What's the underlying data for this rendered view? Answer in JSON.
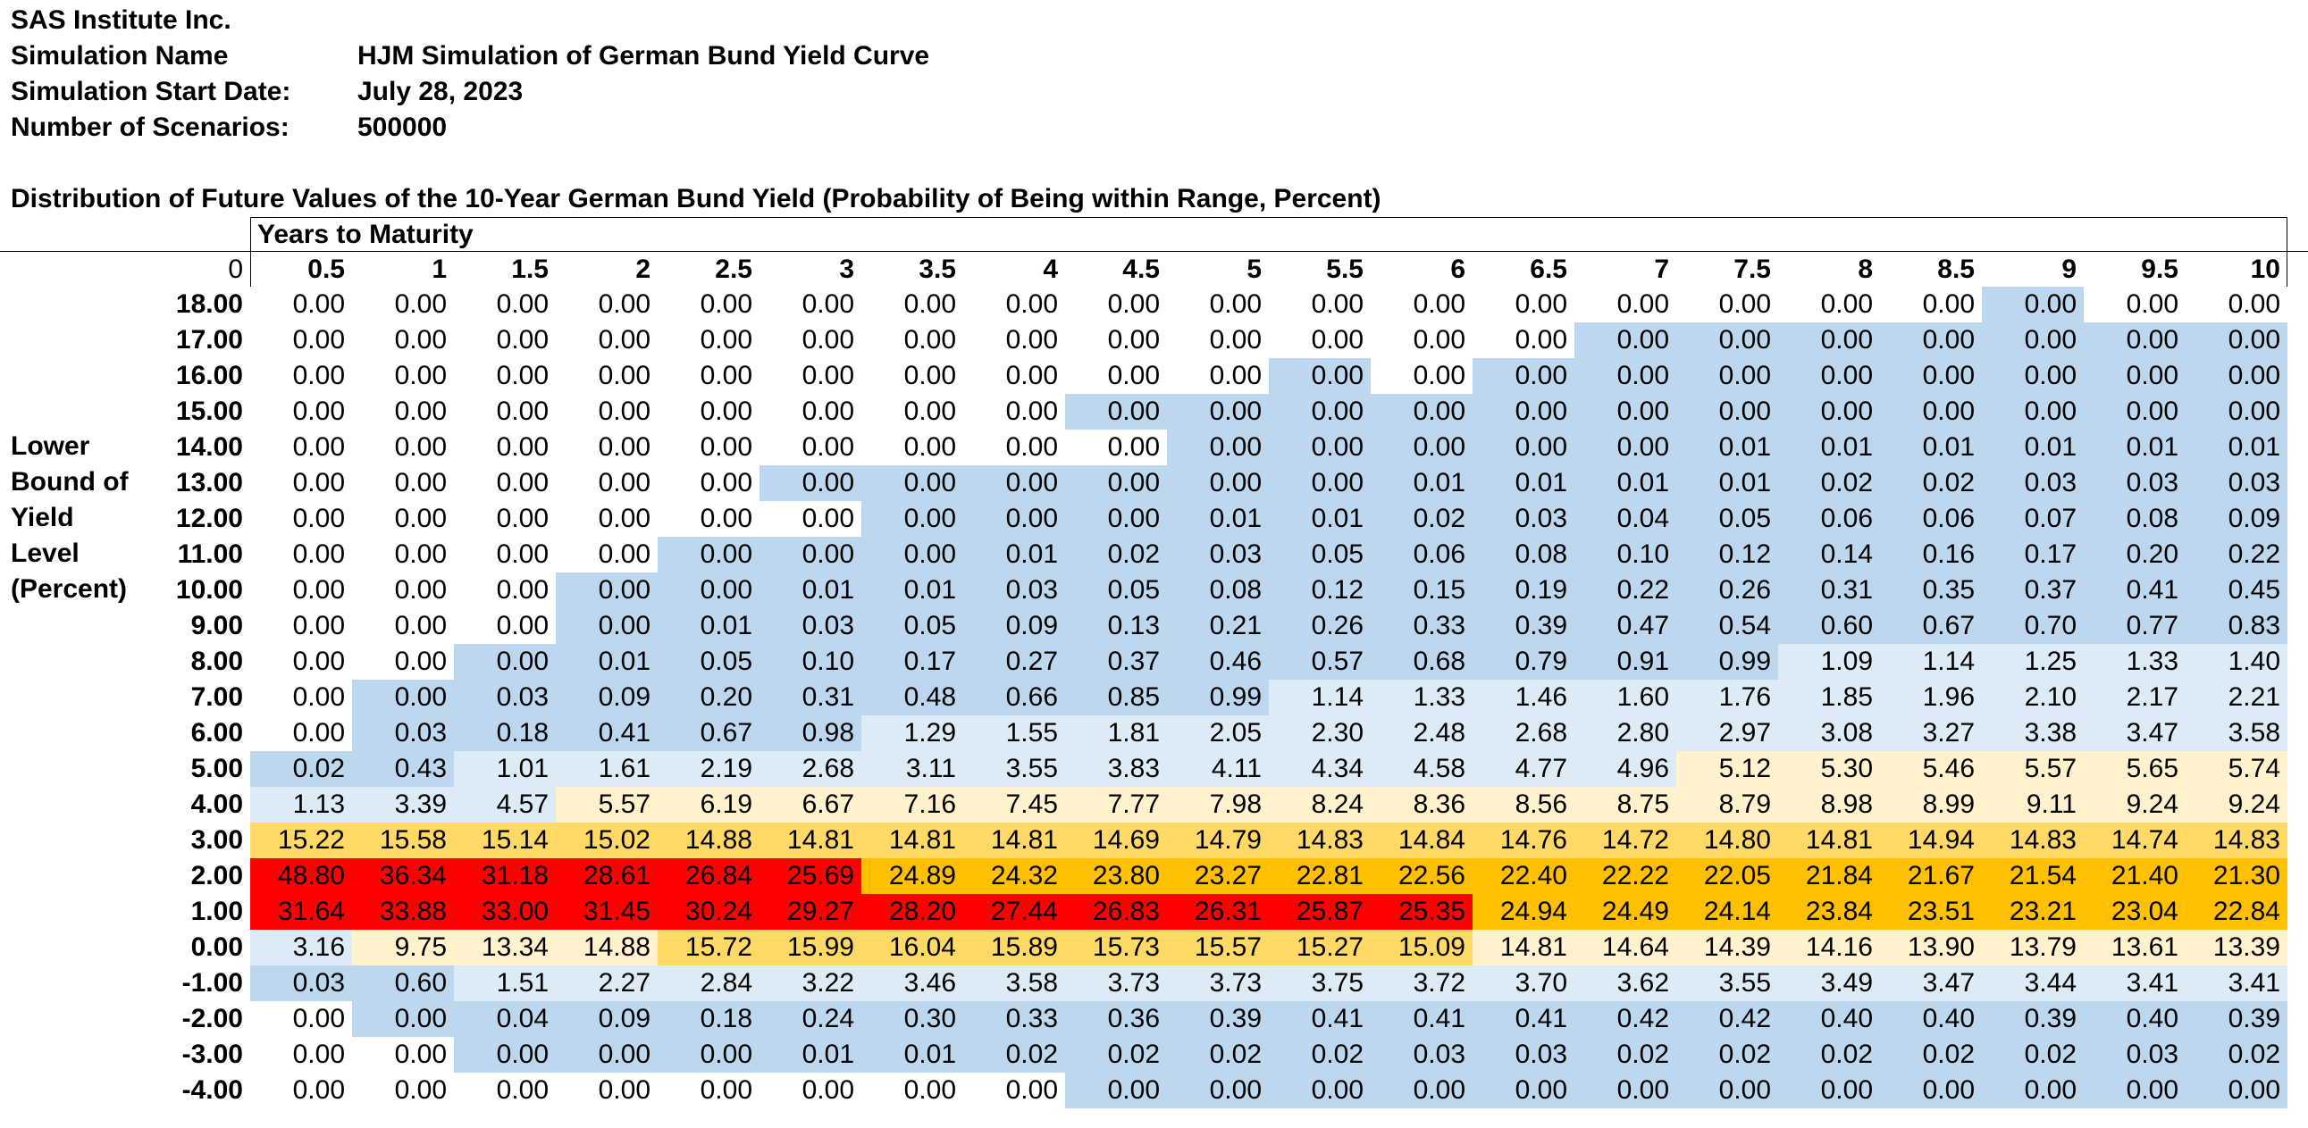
{
  "header": {
    "company": "SAS Institute Inc.",
    "simulation_name_label": "Simulation Name",
    "simulation_name": "HJM Simulation of German Bund Yield Curve",
    "start_date_label": "Simulation Start Date:",
    "start_date": "July 28, 2023",
    "scenarios_label": "Number of Scenarios:",
    "scenarios": "500000"
  },
  "table_title": "Distribution of Future Values of the 10-Year German Bund Yield (Probability of Being within Range, Percent)",
  "column_group_label": "Years to Maturity",
  "corner_label": "0",
  "row_axis_label": [
    "Lower",
    "Bound of",
    "Yield",
    "Level",
    "(Percent)"
  ],
  "columns": [
    "0.5",
    "1",
    "1.5",
    "2",
    "2.5",
    "3",
    "3.5",
    "4",
    "4.5",
    "5",
    "5.5",
    "6",
    "6.5",
    "7",
    "7.5",
    "8",
    "8.5",
    "9",
    "9.5",
    "10"
  ],
  "colors": {
    "white": "#ffffff",
    "blue": "#bdd7ee",
    "light_blue": "#ddebf7",
    "light_yellow": "#fff2cc",
    "yellow": "#ffd966",
    "orange": "#ffc000",
    "red": "#ff0000"
  },
  "rows": [
    {
      "label": "18.00",
      "values": [
        "0.00",
        "0.00",
        "0.00",
        "0.00",
        "0.00",
        "0.00",
        "0.00",
        "0.00",
        "0.00",
        "0.00",
        "0.00",
        "0.00",
        "0.00",
        "0.00",
        "0.00",
        "0.00",
        "0.00",
        "0.00",
        "0.00",
        "0.00"
      ],
      "colors": [
        "white",
        "white",
        "white",
        "white",
        "white",
        "white",
        "white",
        "white",
        "white",
        "white",
        "white",
        "white",
        "white",
        "white",
        "white",
        "white",
        "white",
        "blue",
        "white",
        "white"
      ]
    },
    {
      "label": "17.00",
      "values": [
        "0.00",
        "0.00",
        "0.00",
        "0.00",
        "0.00",
        "0.00",
        "0.00",
        "0.00",
        "0.00",
        "0.00",
        "0.00",
        "0.00",
        "0.00",
        "0.00",
        "0.00",
        "0.00",
        "0.00",
        "0.00",
        "0.00",
        "0.00"
      ],
      "colors": [
        "white",
        "white",
        "white",
        "white",
        "white",
        "white",
        "white",
        "white",
        "white",
        "white",
        "white",
        "white",
        "white",
        "blue",
        "blue",
        "blue",
        "blue",
        "blue",
        "blue",
        "blue"
      ]
    },
    {
      "label": "16.00",
      "values": [
        "0.00",
        "0.00",
        "0.00",
        "0.00",
        "0.00",
        "0.00",
        "0.00",
        "0.00",
        "0.00",
        "0.00",
        "0.00",
        "0.00",
        "0.00",
        "0.00",
        "0.00",
        "0.00",
        "0.00",
        "0.00",
        "0.00",
        "0.00"
      ],
      "colors": [
        "white",
        "white",
        "white",
        "white",
        "white",
        "white",
        "white",
        "white",
        "white",
        "white",
        "blue",
        "white",
        "blue",
        "blue",
        "blue",
        "blue",
        "blue",
        "blue",
        "blue",
        "blue"
      ]
    },
    {
      "label": "15.00",
      "values": [
        "0.00",
        "0.00",
        "0.00",
        "0.00",
        "0.00",
        "0.00",
        "0.00",
        "0.00",
        "0.00",
        "0.00",
        "0.00",
        "0.00",
        "0.00",
        "0.00",
        "0.00",
        "0.00",
        "0.00",
        "0.00",
        "0.00",
        "0.00"
      ],
      "colors": [
        "white",
        "white",
        "white",
        "white",
        "white",
        "white",
        "white",
        "white",
        "blue",
        "blue",
        "blue",
        "blue",
        "blue",
        "blue",
        "blue",
        "blue",
        "blue",
        "blue",
        "blue",
        "blue"
      ]
    },
    {
      "label": "14.00",
      "values": [
        "0.00",
        "0.00",
        "0.00",
        "0.00",
        "0.00",
        "0.00",
        "0.00",
        "0.00",
        "0.00",
        "0.00",
        "0.00",
        "0.00",
        "0.00",
        "0.00",
        "0.01",
        "0.01",
        "0.01",
        "0.01",
        "0.01",
        "0.01"
      ],
      "colors": [
        "white",
        "white",
        "white",
        "white",
        "white",
        "white",
        "white",
        "white",
        "white",
        "blue",
        "blue",
        "blue",
        "blue",
        "blue",
        "blue",
        "blue",
        "blue",
        "blue",
        "blue",
        "blue"
      ]
    },
    {
      "label": "13.00",
      "values": [
        "0.00",
        "0.00",
        "0.00",
        "0.00",
        "0.00",
        "0.00",
        "0.00",
        "0.00",
        "0.00",
        "0.00",
        "0.00",
        "0.01",
        "0.01",
        "0.01",
        "0.01",
        "0.02",
        "0.02",
        "0.03",
        "0.03",
        "0.03"
      ],
      "colors": [
        "white",
        "white",
        "white",
        "white",
        "white",
        "blue",
        "blue",
        "blue",
        "blue",
        "blue",
        "blue",
        "blue",
        "blue",
        "blue",
        "blue",
        "blue",
        "blue",
        "blue",
        "blue",
        "blue"
      ]
    },
    {
      "label": "12.00",
      "values": [
        "0.00",
        "0.00",
        "0.00",
        "0.00",
        "0.00",
        "0.00",
        "0.00",
        "0.00",
        "0.00",
        "0.01",
        "0.01",
        "0.02",
        "0.03",
        "0.04",
        "0.05",
        "0.06",
        "0.06",
        "0.07",
        "0.08",
        "0.09"
      ],
      "colors": [
        "white",
        "white",
        "white",
        "white",
        "white",
        "white",
        "blue",
        "blue",
        "blue",
        "blue",
        "blue",
        "blue",
        "blue",
        "blue",
        "blue",
        "blue",
        "blue",
        "blue",
        "blue",
        "blue"
      ]
    },
    {
      "label": "11.00",
      "values": [
        "0.00",
        "0.00",
        "0.00",
        "0.00",
        "0.00",
        "0.00",
        "0.00",
        "0.01",
        "0.02",
        "0.03",
        "0.05",
        "0.06",
        "0.08",
        "0.10",
        "0.12",
        "0.14",
        "0.16",
        "0.17",
        "0.20",
        "0.22"
      ],
      "colors": [
        "white",
        "white",
        "white",
        "white",
        "blue",
        "blue",
        "blue",
        "blue",
        "blue",
        "blue",
        "blue",
        "blue",
        "blue",
        "blue",
        "blue",
        "blue",
        "blue",
        "blue",
        "blue",
        "blue"
      ]
    },
    {
      "label": "10.00",
      "values": [
        "0.00",
        "0.00",
        "0.00",
        "0.00",
        "0.00",
        "0.01",
        "0.01",
        "0.03",
        "0.05",
        "0.08",
        "0.12",
        "0.15",
        "0.19",
        "0.22",
        "0.26",
        "0.31",
        "0.35",
        "0.37",
        "0.41",
        "0.45"
      ],
      "colors": [
        "white",
        "white",
        "white",
        "blue",
        "blue",
        "blue",
        "blue",
        "blue",
        "blue",
        "blue",
        "blue",
        "blue",
        "blue",
        "blue",
        "blue",
        "blue",
        "blue",
        "blue",
        "blue",
        "blue"
      ]
    },
    {
      "label": "9.00",
      "values": [
        "0.00",
        "0.00",
        "0.00",
        "0.00",
        "0.01",
        "0.03",
        "0.05",
        "0.09",
        "0.13",
        "0.21",
        "0.26",
        "0.33",
        "0.39",
        "0.47",
        "0.54",
        "0.60",
        "0.67",
        "0.70",
        "0.77",
        "0.83"
      ],
      "colors": [
        "white",
        "white",
        "white",
        "blue",
        "blue",
        "blue",
        "blue",
        "blue",
        "blue",
        "blue",
        "blue",
        "blue",
        "blue",
        "blue",
        "blue",
        "blue",
        "blue",
        "blue",
        "blue",
        "blue"
      ]
    },
    {
      "label": "8.00",
      "values": [
        "0.00",
        "0.00",
        "0.00",
        "0.01",
        "0.05",
        "0.10",
        "0.17",
        "0.27",
        "0.37",
        "0.46",
        "0.57",
        "0.68",
        "0.79",
        "0.91",
        "0.99",
        "1.09",
        "1.14",
        "1.25",
        "1.33",
        "1.40"
      ],
      "colors": [
        "white",
        "white",
        "blue",
        "blue",
        "blue",
        "blue",
        "blue",
        "blue",
        "blue",
        "blue",
        "blue",
        "blue",
        "blue",
        "blue",
        "blue",
        "light_blue",
        "light_blue",
        "light_blue",
        "light_blue",
        "light_blue"
      ]
    },
    {
      "label": "7.00",
      "values": [
        "0.00",
        "0.00",
        "0.03",
        "0.09",
        "0.20",
        "0.31",
        "0.48",
        "0.66",
        "0.85",
        "0.99",
        "1.14",
        "1.33",
        "1.46",
        "1.60",
        "1.76",
        "1.85",
        "1.96",
        "2.10",
        "2.17",
        "2.21"
      ],
      "colors": [
        "white",
        "blue",
        "blue",
        "blue",
        "blue",
        "blue",
        "blue",
        "blue",
        "blue",
        "blue",
        "light_blue",
        "light_blue",
        "light_blue",
        "light_blue",
        "light_blue",
        "light_blue",
        "light_blue",
        "light_blue",
        "light_blue",
        "light_blue"
      ]
    },
    {
      "label": "6.00",
      "values": [
        "0.00",
        "0.03",
        "0.18",
        "0.41",
        "0.67",
        "0.98",
        "1.29",
        "1.55",
        "1.81",
        "2.05",
        "2.30",
        "2.48",
        "2.68",
        "2.80",
        "2.97",
        "3.08",
        "3.27",
        "3.38",
        "3.47",
        "3.58"
      ],
      "colors": [
        "white",
        "blue",
        "blue",
        "blue",
        "blue",
        "blue",
        "light_blue",
        "light_blue",
        "light_blue",
        "light_blue",
        "light_blue",
        "light_blue",
        "light_blue",
        "light_blue",
        "light_blue",
        "light_blue",
        "light_blue",
        "light_blue",
        "light_blue",
        "light_blue"
      ]
    },
    {
      "label": "5.00",
      "values": [
        "0.02",
        "0.43",
        "1.01",
        "1.61",
        "2.19",
        "2.68",
        "3.11",
        "3.55",
        "3.83",
        "4.11",
        "4.34",
        "4.58",
        "4.77",
        "4.96",
        "5.12",
        "5.30",
        "5.46",
        "5.57",
        "5.65",
        "5.74"
      ],
      "colors": [
        "blue",
        "blue",
        "light_blue",
        "light_blue",
        "light_blue",
        "light_blue",
        "light_blue",
        "light_blue",
        "light_blue",
        "light_blue",
        "light_blue",
        "light_blue",
        "light_blue",
        "light_blue",
        "light_yellow",
        "light_yellow",
        "light_yellow",
        "light_yellow",
        "light_yellow",
        "light_yellow"
      ]
    },
    {
      "label": "4.00",
      "values": [
        "1.13",
        "3.39",
        "4.57",
        "5.57",
        "6.19",
        "6.67",
        "7.16",
        "7.45",
        "7.77",
        "7.98",
        "8.24",
        "8.36",
        "8.56",
        "8.75",
        "8.79",
        "8.98",
        "8.99",
        "9.11",
        "9.24",
        "9.24"
      ],
      "colors": [
        "light_blue",
        "light_blue",
        "light_blue",
        "light_yellow",
        "light_yellow",
        "light_yellow",
        "light_yellow",
        "light_yellow",
        "light_yellow",
        "light_yellow",
        "light_yellow",
        "light_yellow",
        "light_yellow",
        "light_yellow",
        "light_yellow",
        "light_yellow",
        "light_yellow",
        "light_yellow",
        "light_yellow",
        "light_yellow"
      ]
    },
    {
      "label": "3.00",
      "values": [
        "15.22",
        "15.58",
        "15.14",
        "15.02",
        "14.88",
        "14.81",
        "14.81",
        "14.81",
        "14.69",
        "14.79",
        "14.83",
        "14.84",
        "14.76",
        "14.72",
        "14.80",
        "14.81",
        "14.94",
        "14.83",
        "14.74",
        "14.83"
      ],
      "colors": [
        "yellow",
        "yellow",
        "yellow",
        "yellow",
        "yellow",
        "yellow",
        "yellow",
        "yellow",
        "yellow",
        "yellow",
        "yellow",
        "yellow",
        "yellow",
        "yellow",
        "yellow",
        "yellow",
        "yellow",
        "yellow",
        "yellow",
        "yellow"
      ]
    },
    {
      "label": "2.00",
      "values": [
        "48.80",
        "36.34",
        "31.18",
        "28.61",
        "26.84",
        "25.69",
        "24.89",
        "24.32",
        "23.80",
        "23.27",
        "22.81",
        "22.56",
        "22.40",
        "22.22",
        "22.05",
        "21.84",
        "21.67",
        "21.54",
        "21.40",
        "21.30"
      ],
      "colors": [
        "red",
        "red",
        "red",
        "red",
        "red",
        "red",
        "orange",
        "orange",
        "orange",
        "orange",
        "orange",
        "orange",
        "orange",
        "orange",
        "orange",
        "orange",
        "orange",
        "orange",
        "orange",
        "orange"
      ]
    },
    {
      "label": "1.00",
      "values": [
        "31.64",
        "33.88",
        "33.00",
        "31.45",
        "30.24",
        "29.27",
        "28.20",
        "27.44",
        "26.83",
        "26.31",
        "25.87",
        "25.35",
        "24.94",
        "24.49",
        "24.14",
        "23.84",
        "23.51",
        "23.21",
        "23.04",
        "22.84"
      ],
      "colors": [
        "red",
        "red",
        "red",
        "red",
        "red",
        "red",
        "red",
        "red",
        "red",
        "red",
        "red",
        "red",
        "orange",
        "orange",
        "orange",
        "orange",
        "orange",
        "orange",
        "orange",
        "orange"
      ]
    },
    {
      "label": "0.00",
      "values": [
        "3.16",
        "9.75",
        "13.34",
        "14.88",
        "15.72",
        "15.99",
        "16.04",
        "15.89",
        "15.73",
        "15.57",
        "15.27",
        "15.09",
        "14.81",
        "14.64",
        "14.39",
        "14.16",
        "13.90",
        "13.79",
        "13.61",
        "13.39"
      ],
      "colors": [
        "light_blue",
        "light_yellow",
        "light_yellow",
        "light_yellow",
        "yellow",
        "yellow",
        "yellow",
        "yellow",
        "yellow",
        "yellow",
        "yellow",
        "yellow",
        "light_yellow",
        "light_yellow",
        "light_yellow",
        "light_yellow",
        "light_yellow",
        "light_yellow",
        "light_yellow",
        "light_yellow"
      ]
    },
    {
      "label": "-1.00",
      "values": [
        "0.03",
        "0.60",
        "1.51",
        "2.27",
        "2.84",
        "3.22",
        "3.46",
        "3.58",
        "3.73",
        "3.73",
        "3.75",
        "3.72",
        "3.70",
        "3.62",
        "3.55",
        "3.49",
        "3.47",
        "3.44",
        "3.41",
        "3.41"
      ],
      "colors": [
        "blue",
        "blue",
        "light_blue",
        "light_blue",
        "light_blue",
        "light_blue",
        "light_blue",
        "light_blue",
        "light_blue",
        "light_blue",
        "light_blue",
        "light_blue",
        "light_blue",
        "light_blue",
        "light_blue",
        "light_blue",
        "light_blue",
        "light_blue",
        "light_blue",
        "light_blue"
      ]
    },
    {
      "label": "-2.00",
      "values": [
        "0.00",
        "0.00",
        "0.04",
        "0.09",
        "0.18",
        "0.24",
        "0.30",
        "0.33",
        "0.36",
        "0.39",
        "0.41",
        "0.41",
        "0.41",
        "0.42",
        "0.42",
        "0.40",
        "0.40",
        "0.39",
        "0.40",
        "0.39"
      ],
      "colors": [
        "white",
        "blue",
        "blue",
        "blue",
        "blue",
        "blue",
        "blue",
        "blue",
        "blue",
        "blue",
        "blue",
        "blue",
        "blue",
        "blue",
        "blue",
        "blue",
        "blue",
        "blue",
        "blue",
        "blue"
      ]
    },
    {
      "label": "-3.00",
      "values": [
        "0.00",
        "0.00",
        "0.00",
        "0.00",
        "0.00",
        "0.01",
        "0.01",
        "0.02",
        "0.02",
        "0.02",
        "0.02",
        "0.03",
        "0.03",
        "0.02",
        "0.02",
        "0.02",
        "0.02",
        "0.02",
        "0.03",
        "0.02"
      ],
      "colors": [
        "white",
        "white",
        "blue",
        "blue",
        "blue",
        "blue",
        "blue",
        "blue",
        "blue",
        "blue",
        "blue",
        "blue",
        "blue",
        "blue",
        "blue",
        "blue",
        "blue",
        "blue",
        "blue",
        "blue"
      ]
    },
    {
      "label": "-4.00",
      "values": [
        "0.00",
        "0.00",
        "0.00",
        "0.00",
        "0.00",
        "0.00",
        "0.00",
        "0.00",
        "0.00",
        "0.00",
        "0.00",
        "0.00",
        "0.00",
        "0.00",
        "0.00",
        "0.00",
        "0.00",
        "0.00",
        "0.00",
        "0.00"
      ],
      "colors": [
        "white",
        "white",
        "white",
        "white",
        "white",
        "white",
        "white",
        "white",
        "blue",
        "blue",
        "blue",
        "blue",
        "blue",
        "blue",
        "blue",
        "blue",
        "blue",
        "blue",
        "blue",
        "blue"
      ]
    }
  ]
}
